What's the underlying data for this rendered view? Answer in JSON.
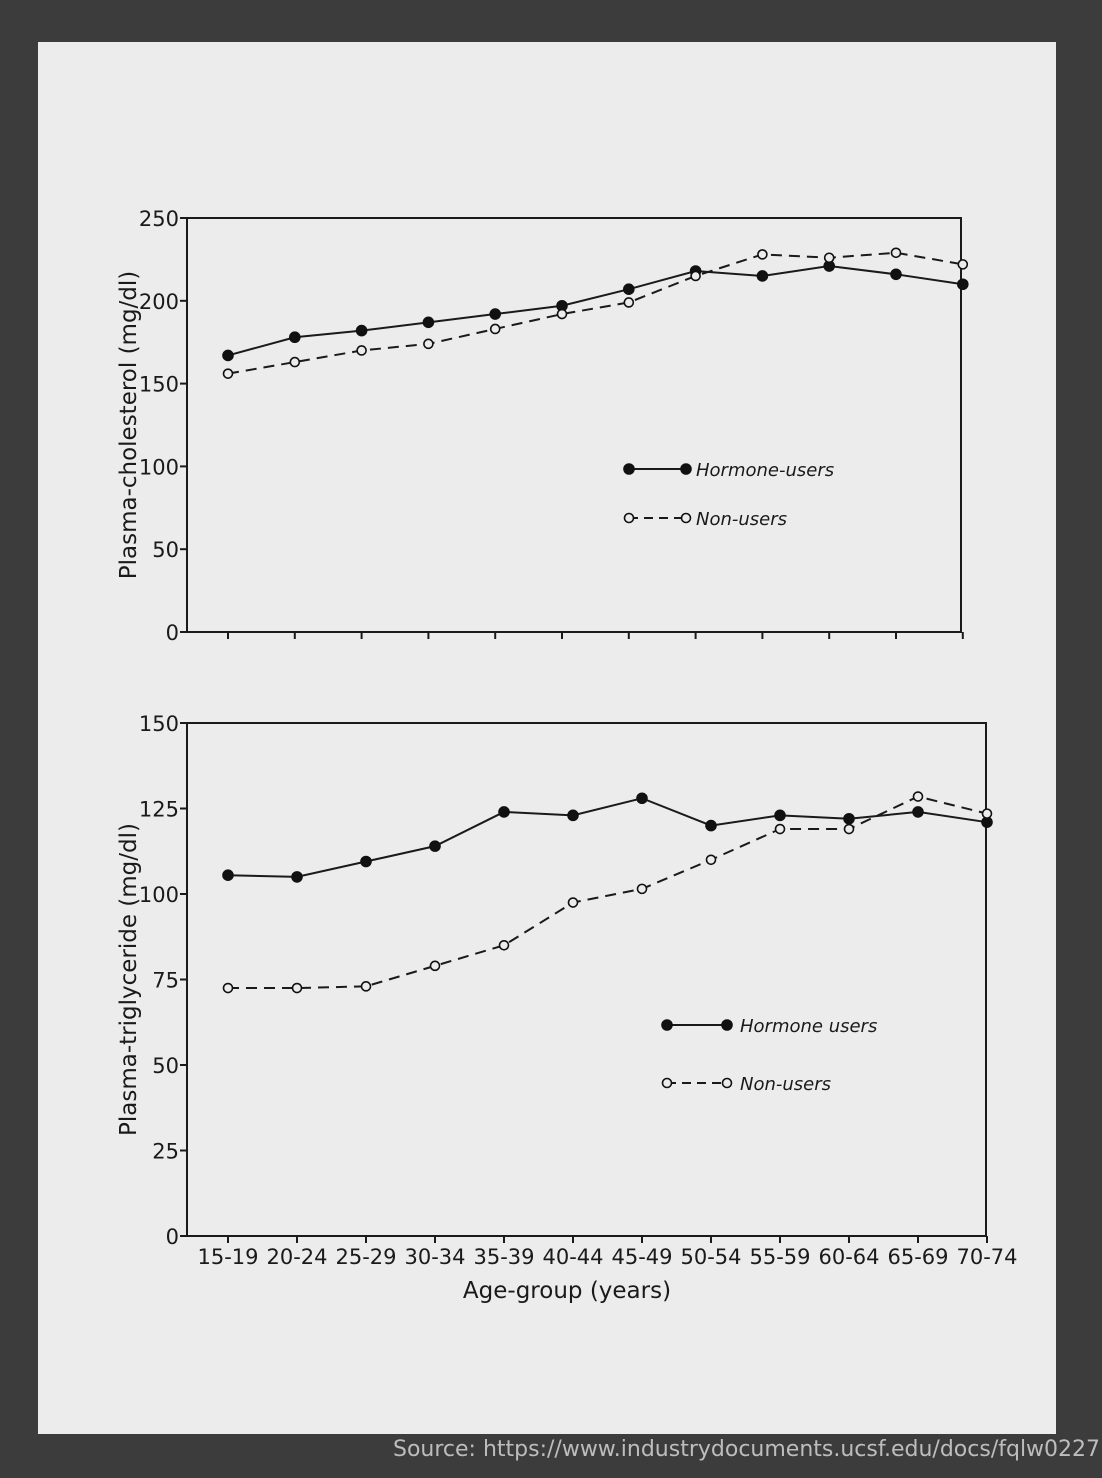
{
  "source": "Source: https://www.industrydocuments.ucsf.edu/docs/fqlw0227",
  "chart_data": [
    {
      "type": "line",
      "title": "",
      "xlabel": "",
      "ylabel": "Plasma-cholesterol (mg/dl)",
      "categories": [
        "15-19",
        "20-24",
        "25-29",
        "30-34",
        "35-39",
        "40-44",
        "45-49",
        "50-54",
        "55-59",
        "60-64",
        "65-69",
        "70-74"
      ],
      "ylim": [
        0,
        250
      ],
      "yticks": [
        "0",
        "50",
        "100",
        "150",
        "200",
        "250"
      ],
      "show_x_tick_labels": false,
      "grid": false,
      "legend_position": "center-right",
      "series": [
        {
          "name": "Hormone-users",
          "style": "solid-filled",
          "values": [
            167,
            178,
            182,
            187,
            192,
            197,
            207,
            218,
            215,
            221,
            216,
            210
          ]
        },
        {
          "name": "Non-users",
          "style": "dashed-open",
          "values": [
            156,
            163,
            170,
            174,
            183,
            192,
            199,
            215,
            228,
            226,
            229,
            222
          ]
        }
      ]
    },
    {
      "type": "line",
      "title": "",
      "xlabel": "Age-group (years)",
      "ylabel": "Plasma-triglyceride (mg/dl)",
      "categories": [
        "15-19",
        "20-24",
        "25-29",
        "30-34",
        "35-39",
        "40-44",
        "45-49",
        "50-54",
        "55-59",
        "60-64",
        "65-69",
        "70-74"
      ],
      "ylim": [
        0,
        150
      ],
      "yticks": [
        "0",
        "25",
        "50",
        "75",
        "100",
        "125",
        "150"
      ],
      "show_x_tick_labels": true,
      "grid": false,
      "legend_position": "lower-right",
      "series": [
        {
          "name": "Hormone users",
          "style": "solid-filled",
          "values": [
            105.5,
            105,
            109.5,
            114,
            124,
            123,
            128,
            120,
            123,
            122,
            124,
            121
          ]
        },
        {
          "name": "Non-users",
          "style": "dashed-open",
          "values": [
            72.5,
            72.5,
            73,
            79,
            85,
            97.5,
            101.5,
            110,
            119,
            119,
            128.5,
            123.5
          ]
        }
      ]
    }
  ]
}
